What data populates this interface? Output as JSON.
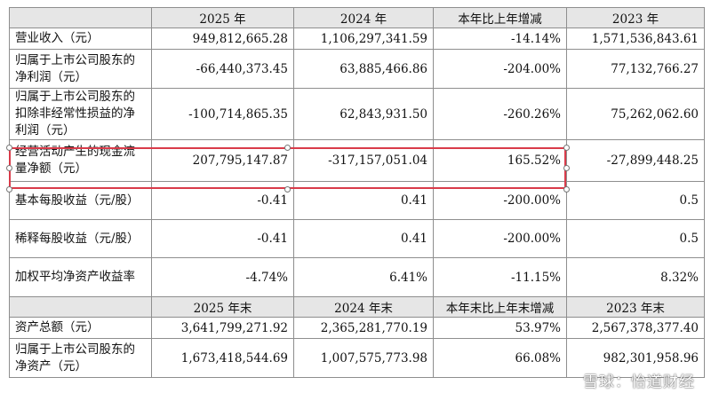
{
  "header1": [
    "",
    "2025 年",
    "2024 年",
    "本年比上年增减",
    "2023 年"
  ],
  "rows1": [
    [
      "营业收入（元）",
      "949,812,665.28",
      "1,106,297,341.59",
      "-14.14%",
      "1,571,536,843.61"
    ],
    [
      "归属于上市公司股东的净利润（元）",
      "-66,440,373.45",
      "63,885,466.86",
      "-204.00%",
      "77,132,766.27"
    ],
    [
      "归属于上市公司股东的扣除非经常性损益的净利润（元）",
      "-100,714,865.35",
      "62,843,931.50",
      "-260.26%",
      "75,262,062.60"
    ],
    [
      "经营活动产生的现金流量净额（元）",
      "207,795,147.87",
      "-317,157,051.04",
      "165.52%",
      "-27,899,448.25"
    ],
    [
      "基本每股收益（元/股）",
      "-0.41",
      "0.41",
      "-200.00%",
      "0.5"
    ],
    [
      "稀释每股收益（元/股）",
      "-0.41",
      "0.41",
      "-200.00%",
      "0.5"
    ],
    [
      "加权平均净资产收益率",
      "-4.74%",
      "6.41%",
      "-11.15%",
      "8.32%"
    ]
  ],
  "header2": [
    "",
    "2025 年末",
    "2024 年末",
    "本年末比上年末增减",
    "2023 年末"
  ],
  "rows2": [
    [
      "资产总额（元）",
      "3,641,799,271.92",
      "2,365,281,770.19",
      "53.97%",
      "2,567,378,377.40"
    ],
    [
      "归属于上市公司股东的净资产（元）",
      "1,673,418,544.69",
      "1,007,575,773.98",
      "66.08%",
      "982,301,958.96"
    ]
  ],
  "watermark": "雪球：怡道财经",
  "highlight_color": "#d93b4a"
}
